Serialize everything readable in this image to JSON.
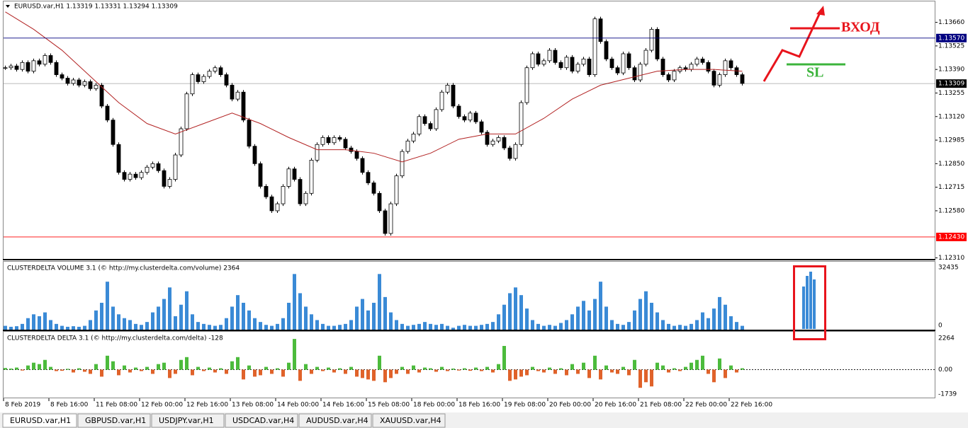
{
  "header": {
    "title": "EURUSD.var,H1  1.13319 1.13331 1.13294 1.13309"
  },
  "price_chart": {
    "type": "candlestick",
    "close": [
      1.134,
      1.1341,
      1.1339,
      1.1343,
      1.1338,
      1.1344,
      1.1342,
      1.1347,
      1.1343,
      1.1336,
      1.1334,
      1.1331,
      1.1333,
      1.133,
      1.1332,
      1.1328,
      1.133,
      1.1318,
      1.131,
      1.1296,
      1.128,
      1.1276,
      1.1279,
      1.1277,
      1.128,
      1.1283,
      1.1285,
      1.1281,
      1.1272,
      1.1276,
      1.129,
      1.1305,
      1.1325,
      1.1336,
      1.1332,
      1.1335,
      1.1338,
      1.134,
      1.1336,
      1.133,
      1.1322,
      1.1326,
      1.131,
      1.1295,
      1.1285,
      1.1272,
      1.1266,
      1.1258,
      1.1262,
      1.1272,
      1.1282,
      1.1276,
      1.1262,
      1.1268,
      1.1287,
      1.1296,
      1.13,
      1.1297,
      1.13,
      1.1299,
      1.1294,
      1.1292,
      1.1288,
      1.128,
      1.1274,
      1.1268,
      1.1258,
      1.1245,
      1.1262,
      1.1278,
      1.1292,
      1.1298,
      1.1302,
      1.1312,
      1.1308,
      1.1305,
      1.1316,
      1.1326,
      1.133,
      1.1318,
      1.1312,
      1.131,
      1.1314,
      1.1309,
      1.1303,
      1.1296,
      1.1298,
      1.13,
      1.1294,
      1.1288,
      1.1296,
      1.132,
      1.134,
      1.1348,
      1.1342,
      1.1344,
      1.135,
      1.1343,
      1.134,
      1.1346,
      1.1338,
      1.1342,
      1.1345,
      1.1336,
      1.1368,
      1.1355,
      1.1345,
      1.134,
      1.1337,
      1.1348,
      1.134,
      1.1333,
      1.1342,
      1.135,
      1.1362,
      1.1345,
      1.1336,
      1.1333,
      1.1338,
      1.134,
      1.1339,
      1.1342,
      1.1345,
      1.1343,
      1.1338,
      1.133,
      1.1336,
      1.1344,
      1.134,
      1.1336,
      1.1331
    ],
    "ma": [
      1.1372,
      1.1362,
      1.135,
      1.1335,
      1.132,
      1.1308,
      1.1302,
      1.1308,
      1.1314,
      1.1308,
      1.13,
      1.1293,
      1.1293,
      1.1291,
      1.1286,
      1.1291,
      1.1299,
      1.1302,
      1.1302,
      1.1311,
      1.1322,
      1.133,
      1.1334,
      1.1338,
      1.1339,
      1.1339,
      1.1338
    ],
    "ma_color": "#b22222",
    "ylim": [
      1.123,
      1.1378
    ],
    "yticks": [
      {
        "value": 1.1366,
        "label": "1.13660"
      },
      {
        "value": 1.13525,
        "label": "1.13525"
      },
      {
        "value": 1.1339,
        "label": "1.13390"
      },
      {
        "value": 1.13255,
        "label": "1.13255"
      },
      {
        "value": 1.1312,
        "label": "1.13120"
      },
      {
        "value": 1.12985,
        "label": "1.12985"
      },
      {
        "value": 1.1285,
        "label": "1.12850"
      },
      {
        "value": 1.12715,
        "label": "1.12715"
      },
      {
        "value": 1.1258,
        "label": "1.12580"
      },
      {
        "value": 1.1231,
        "label": "1.12310"
      }
    ],
    "levels": [
      {
        "value": 1.1357,
        "label": "1.13570",
        "color": "#000080"
      },
      {
        "value": 1.1243,
        "label": "1.12430",
        "color": "#ff0000"
      },
      {
        "value": 1.13309,
        "label": "1.13309",
        "color": "#000000"
      }
    ]
  },
  "volume": {
    "title": "CLUSTERDELTA VOLUME 3.1 (© http://my.clusterdelta.com/volume) 2364",
    "color": "#3a8ad6",
    "values": [
      2000,
      1500,
      1800,
      3000,
      6000,
      8000,
      7000,
      9000,
      5000,
      3000,
      2000,
      1500,
      1800,
      1500,
      2000,
      5000,
      10000,
      14000,
      25000,
      12000,
      8000,
      6000,
      5000,
      3000,
      2500,
      4000,
      9000,
      12000,
      16000,
      22000,
      7000,
      13000,
      20000,
      8000,
      4000,
      3000,
      2500,
      2000,
      2500,
      6000,
      12000,
      18000,
      14000,
      10000,
      6000,
      4000,
      2500,
      2000,
      3000,
      6000,
      14000,
      29000,
      19000,
      12000,
      8000,
      5000,
      3000,
      2000,
      2000,
      2500,
      3000,
      5000,
      12000,
      16000,
      10000,
      14000,
      29000,
      17000,
      9000,
      5000,
      3000,
      2000,
      2500,
      3000,
      4000,
      3000,
      2500,
      3000,
      2000,
      1000,
      2000,
      2500,
      2000,
      2000,
      2500,
      3000,
      4000,
      8000,
      13000,
      19000,
      22000,
      18000,
      11000,
      5000,
      3000,
      2000,
      2500,
      2000,
      3500,
      5000,
      8000,
      12000,
      15000,
      10000,
      16000,
      25000,
      12000,
      5000,
      3000,
      2500,
      4000,
      10000,
      16000,
      20000,
      14000,
      9000,
      5000,
      3000,
      2000,
      2500,
      2000,
      3000,
      5000,
      9000,
      6000,
      11000,
      17000,
      13000,
      7000,
      4000,
      2000
    ],
    "ylim": [
      0,
      32435
    ],
    "yticks": [
      32435,
      0
    ]
  },
  "delta": {
    "title": "CLUSTERDELTA DELTA 3.1 (© http://my.clusterdelta.com/delta) -128",
    "positive_color": "#4cbb3c",
    "negative_color": "#e0622a",
    "values": [
      120,
      80,
      150,
      -60,
      300,
      500,
      400,
      700,
      200,
      -100,
      -80,
      60,
      -200,
      100,
      -150,
      -300,
      400,
      -500,
      1000,
      600,
      -400,
      300,
      -200,
      150,
      -100,
      200,
      -300,
      400,
      500,
      -600,
      -300,
      700,
      900,
      -400,
      200,
      -100,
      150,
      -200,
      100,
      -300,
      600,
      900,
      -700,
      300,
      -500,
      -400,
      200,
      -300,
      100,
      -500,
      500,
      2200,
      -800,
      400,
      -300,
      200,
      -100,
      150,
      -200,
      100,
      -300,
      200,
      -500,
      -600,
      -700,
      -800,
      1000,
      -900,
      -600,
      -300,
      200,
      -300,
      300,
      -200,
      150,
      100,
      -150,
      200,
      -100,
      80,
      -60,
      100,
      -80,
      150,
      -100,
      200,
      -200,
      400,
      1700,
      -800,
      -700,
      -500,
      -400,
      200,
      -100,
      -200,
      150,
      -300,
      100,
      -400,
      400,
      -300,
      500,
      -600,
      1000,
      -700,
      300,
      -200,
      -300,
      200,
      -400,
      700,
      -1300,
      -900,
      -1200,
      500,
      300,
      -200,
      100,
      -100,
      200,
      500,
      700,
      1000,
      -300,
      -900,
      800,
      -600,
      300,
      -200,
      100
    ],
    "ylim": [
      -2050,
      2714
    ],
    "yticks": [
      2264,
      {
        "value": 0,
        "label": "0.00"
      },
      -1739
    ]
  },
  "time_axis": [
    "8 Feb 2019",
    "8 Feb 16:00",
    "11 Feb 08:00",
    "12 Feb 00:00",
    "12 Feb 16:00",
    "13 Feb 08:00",
    "14 Feb 00:00",
    "14 Feb 16:00",
    "15 Feb 08:00",
    "18 Feb 00:00",
    "18 Feb 16:00",
    "19 Feb 08:00",
    "20 Feb 00:00",
    "20 Feb 16:00",
    "21 Feb 08:00",
    "22 Feb 00:00",
    "22 Feb 16:00"
  ],
  "tabs": [
    "EURUSD.var,H1",
    "GBPUSD.var,H1",
    "USDJPY.var,H1",
    "USDCAD.var,H4",
    "AUDUSD.var,H4",
    "XAUUSD.var,H4"
  ],
  "annotations": {
    "entry": "ВХОД",
    "stop": "SL"
  }
}
